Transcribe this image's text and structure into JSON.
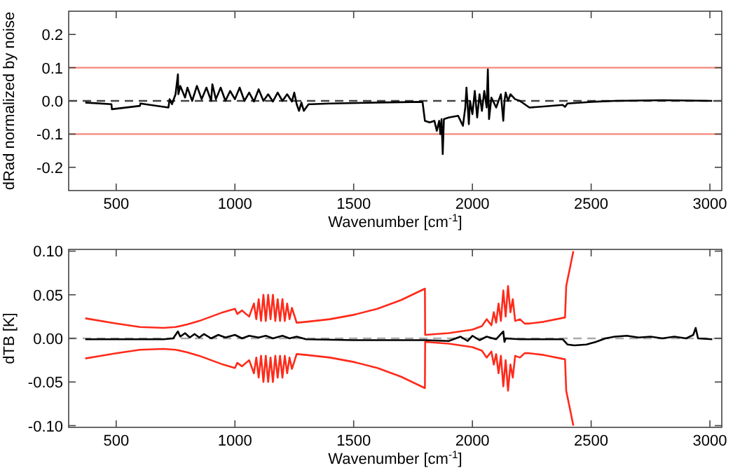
{
  "chart_data": [
    {
      "type": "line",
      "xlabel": "Wavenumber [cm$^{-1}$]",
      "ylabel": "dRad normalized by noise",
      "xlim": [
        300,
        3050
      ],
      "ylim": [
        -0.27,
        0.27
      ],
      "xticks": [
        500,
        1000,
        1500,
        2000,
        2500,
        3000
      ],
      "yticks": [
        -0.2,
        -0.1,
        {
          "value": 0,
          "label": "0.0"
        },
        0.1,
        0.2
      ],
      "ref_lines": [
        {
          "axis": "y",
          "value": 0.1,
          "color": "#f4877a",
          "line_style": "solid"
        },
        {
          "axis": "y",
          "value": -0.1,
          "color": "#f4877a",
          "line_style": "solid"
        },
        {
          "axis": "y",
          "value": 0,
          "color": "#444444",
          "line_style": "dashed"
        }
      ],
      "series": [
        {
          "color": "#000000",
          "x": [
            370,
            480,
            482,
            600,
            602,
            700,
            720,
            725,
            735,
            750,
            760,
            762,
            770,
            790,
            800,
            820,
            840,
            860,
            880,
            900,
            905,
            920,
            940,
            960,
            980,
            1000,
            1020,
            1040,
            1060,
            1080,
            1100,
            1120,
            1140,
            1160,
            1180,
            1200,
            1220,
            1240,
            1250,
            1260,
            1270,
            1280,
            1290,
            1310,
            1320,
            1400,
            1600,
            1790,
            1800,
            1820,
            1840,
            1850,
            1860,
            1865,
            1870,
            1875,
            1880,
            1900,
            1940,
            1960,
            1970,
            1975,
            1985,
            1990,
            2000,
            2010,
            2020,
            2030,
            2040,
            2050,
            2060,
            2065,
            2070,
            2080,
            2100,
            2120,
            2130,
            2135,
            2140,
            2150,
            2160,
            2180,
            2200,
            2220,
            2240,
            2300,
            2380,
            2390,
            2400,
            2500,
            2600,
            2800,
            3010
          ],
          "values": [
            -0.005,
            -0.01,
            -0.025,
            -0.015,
            -0.008,
            -0.018,
            -0.02,
            0.005,
            -0.01,
            0.02,
            0.08,
            0.02,
            0.045,
            0.01,
            0.04,
            0.0,
            0.045,
            0.005,
            0.04,
            0.0,
            0.05,
            0.005,
            0.04,
            0.0,
            0.03,
            0.005,
            0.04,
            0.0,
            0.025,
            -0.002,
            0.035,
            0.0,
            0.02,
            -0.002,
            0.025,
            0.0,
            0.02,
            -0.002,
            0.025,
            -0.01,
            -0.03,
            -0.005,
            -0.03,
            -0.01,
            -0.01,
            -0.008,
            -0.005,
            -0.003,
            -0.06,
            -0.065,
            -0.06,
            -0.09,
            -0.06,
            -0.1,
            -0.055,
            -0.16,
            -0.055,
            -0.05,
            -0.045,
            -0.075,
            -0.02,
            0.04,
            -0.07,
            0.0,
            -0.04,
            0.03,
            -0.05,
            0.02,
            -0.03,
            0.03,
            -0.02,
            0.095,
            -0.055,
            0.01,
            -0.02,
            0.02,
            -0.06,
            0.0,
            0.025,
            0.0,
            0.02,
            0.005,
            0.0,
            -0.01,
            -0.02,
            -0.017,
            -0.012,
            -0.018,
            -0.008,
            -0.003,
            0.0,
            0.002,
            0.0
          ]
        }
      ]
    },
    {
      "type": "line",
      "xlabel": "Wavenumber [cm$^{-1}$]",
      "ylabel": "dTB [K]",
      "xlim": [
        300,
        3050
      ],
      "ylim": [
        -0.102,
        0.102
      ],
      "xticks": [
        500,
        1000,
        1500,
        2000,
        2500,
        3000
      ],
      "yticks": [
        {
          "value": -0.1,
          "label": "-0.10"
        },
        -0.05,
        {
          "value": 0,
          "label": "0.00"
        },
        0.05,
        {
          "value": 0.1,
          "label": "0.10"
        }
      ],
      "ref_lines": [
        {
          "axis": "y",
          "value": 0,
          "color": "#aaaaaa",
          "line_style": "dashed"
        }
      ],
      "series": [
        {
          "color": "#ff2a1a",
          "x": [
            370,
            500,
            600,
            700,
            750,
            800,
            850,
            900,
            950,
            1000,
            1010,
            1030,
            1060,
            1080,
            1090,
            1100,
            1110,
            1120,
            1130,
            1140,
            1150,
            1160,
            1170,
            1180,
            1190,
            1200,
            1210,
            1220,
            1230,
            1240,
            1260,
            1300,
            1400,
            1500,
            1600,
            1700,
            1800,
            1801,
            1900,
            2000,
            2040,
            2060,
            2080,
            2090,
            2100,
            2110,
            2120,
            2130,
            2140,
            2150,
            2160,
            2170,
            2180,
            2200,
            2220,
            2240,
            2300,
            2390,
            2395,
            2410,
            2425
          ],
          "values": [
            0.023,
            0.017,
            0.013,
            0.012,
            0.013,
            0.016,
            0.02,
            0.025,
            0.03,
            0.034,
            0.028,
            0.032,
            0.025,
            0.04,
            0.022,
            0.045,
            0.02,
            0.05,
            0.02,
            0.05,
            0.022,
            0.05,
            0.02,
            0.045,
            0.02,
            0.045,
            0.02,
            0.04,
            0.022,
            0.035,
            0.018,
            0.019,
            0.022,
            0.027,
            0.034,
            0.044,
            0.057,
            0.004,
            0.006,
            0.01,
            0.014,
            0.022,
            0.015,
            0.03,
            0.018,
            0.04,
            0.02,
            0.055,
            0.025,
            0.06,
            0.03,
            0.045,
            0.02,
            0.022,
            0.017,
            0.017,
            0.019,
            0.024,
            0.06,
            0.08,
            0.1
          ]
        },
        {
          "color": "#ff2a1a",
          "x": [
            370,
            500,
            600,
            700,
            750,
            800,
            850,
            900,
            950,
            1000,
            1010,
            1030,
            1060,
            1080,
            1090,
            1100,
            1110,
            1120,
            1130,
            1140,
            1150,
            1160,
            1170,
            1180,
            1190,
            1200,
            1210,
            1220,
            1230,
            1240,
            1260,
            1300,
            1400,
            1500,
            1600,
            1700,
            1800,
            1801,
            1900,
            2000,
            2040,
            2060,
            2080,
            2090,
            2100,
            2110,
            2120,
            2130,
            2140,
            2150,
            2160,
            2170,
            2180,
            2200,
            2220,
            2240,
            2300,
            2390,
            2395,
            2410,
            2425
          ],
          "values": [
            -0.023,
            -0.017,
            -0.013,
            -0.012,
            -0.013,
            -0.016,
            -0.02,
            -0.025,
            -0.03,
            -0.034,
            -0.028,
            -0.032,
            -0.025,
            -0.04,
            -0.022,
            -0.045,
            -0.02,
            -0.05,
            -0.02,
            -0.05,
            -0.022,
            -0.05,
            -0.02,
            -0.045,
            -0.02,
            -0.045,
            -0.02,
            -0.04,
            -0.022,
            -0.035,
            -0.018,
            -0.019,
            -0.022,
            -0.027,
            -0.034,
            -0.044,
            -0.057,
            -0.004,
            -0.006,
            -0.01,
            -0.014,
            -0.022,
            -0.015,
            -0.03,
            -0.018,
            -0.04,
            -0.02,
            -0.055,
            -0.025,
            -0.06,
            -0.03,
            -0.045,
            -0.02,
            -0.022,
            -0.017,
            -0.017,
            -0.019,
            -0.024,
            -0.06,
            -0.08,
            -0.1
          ]
        },
        {
          "color": "#000000",
          "x": [
            370,
            600,
            700,
            740,
            760,
            770,
            790,
            810,
            830,
            850,
            870,
            900,
            930,
            960,
            1000,
            1030,
            1060,
            1100,
            1130,
            1160,
            1200,
            1230,
            1260,
            1300,
            1500,
            1800,
            1900,
            1950,
            1980,
            2000,
            2030,
            2060,
            2100,
            2130,
            2135,
            2140,
            2200,
            2380,
            2400,
            2430,
            2480,
            2520,
            2560,
            2600,
            2650,
            2700,
            2750,
            2800,
            2850,
            2900,
            2930,
            2940,
            2950,
            3010
          ],
          "values": [
            -0.001,
            -0.001,
            -0.001,
            0.0,
            0.008,
            0.002,
            0.006,
            0.001,
            0.005,
            0.001,
            0.005,
            0.0,
            0.004,
            0.001,
            0.004,
            0.0,
            0.003,
            0.001,
            0.003,
            0.0,
            0.003,
            0.0,
            0.002,
            -0.001,
            -0.002,
            -0.002,
            -0.003,
            0.002,
            -0.003,
            0.003,
            -0.002,
            0.002,
            -0.001,
            0.008,
            -0.004,
            0.0,
            -0.001,
            -0.001,
            -0.007,
            -0.008,
            -0.007,
            -0.004,
            0.0,
            0.002,
            0.003,
            0.001,
            0.002,
            0.0,
            0.002,
            0.0,
            0.004,
            0.012,
            0.0,
            -0.001
          ]
        }
      ]
    }
  ]
}
